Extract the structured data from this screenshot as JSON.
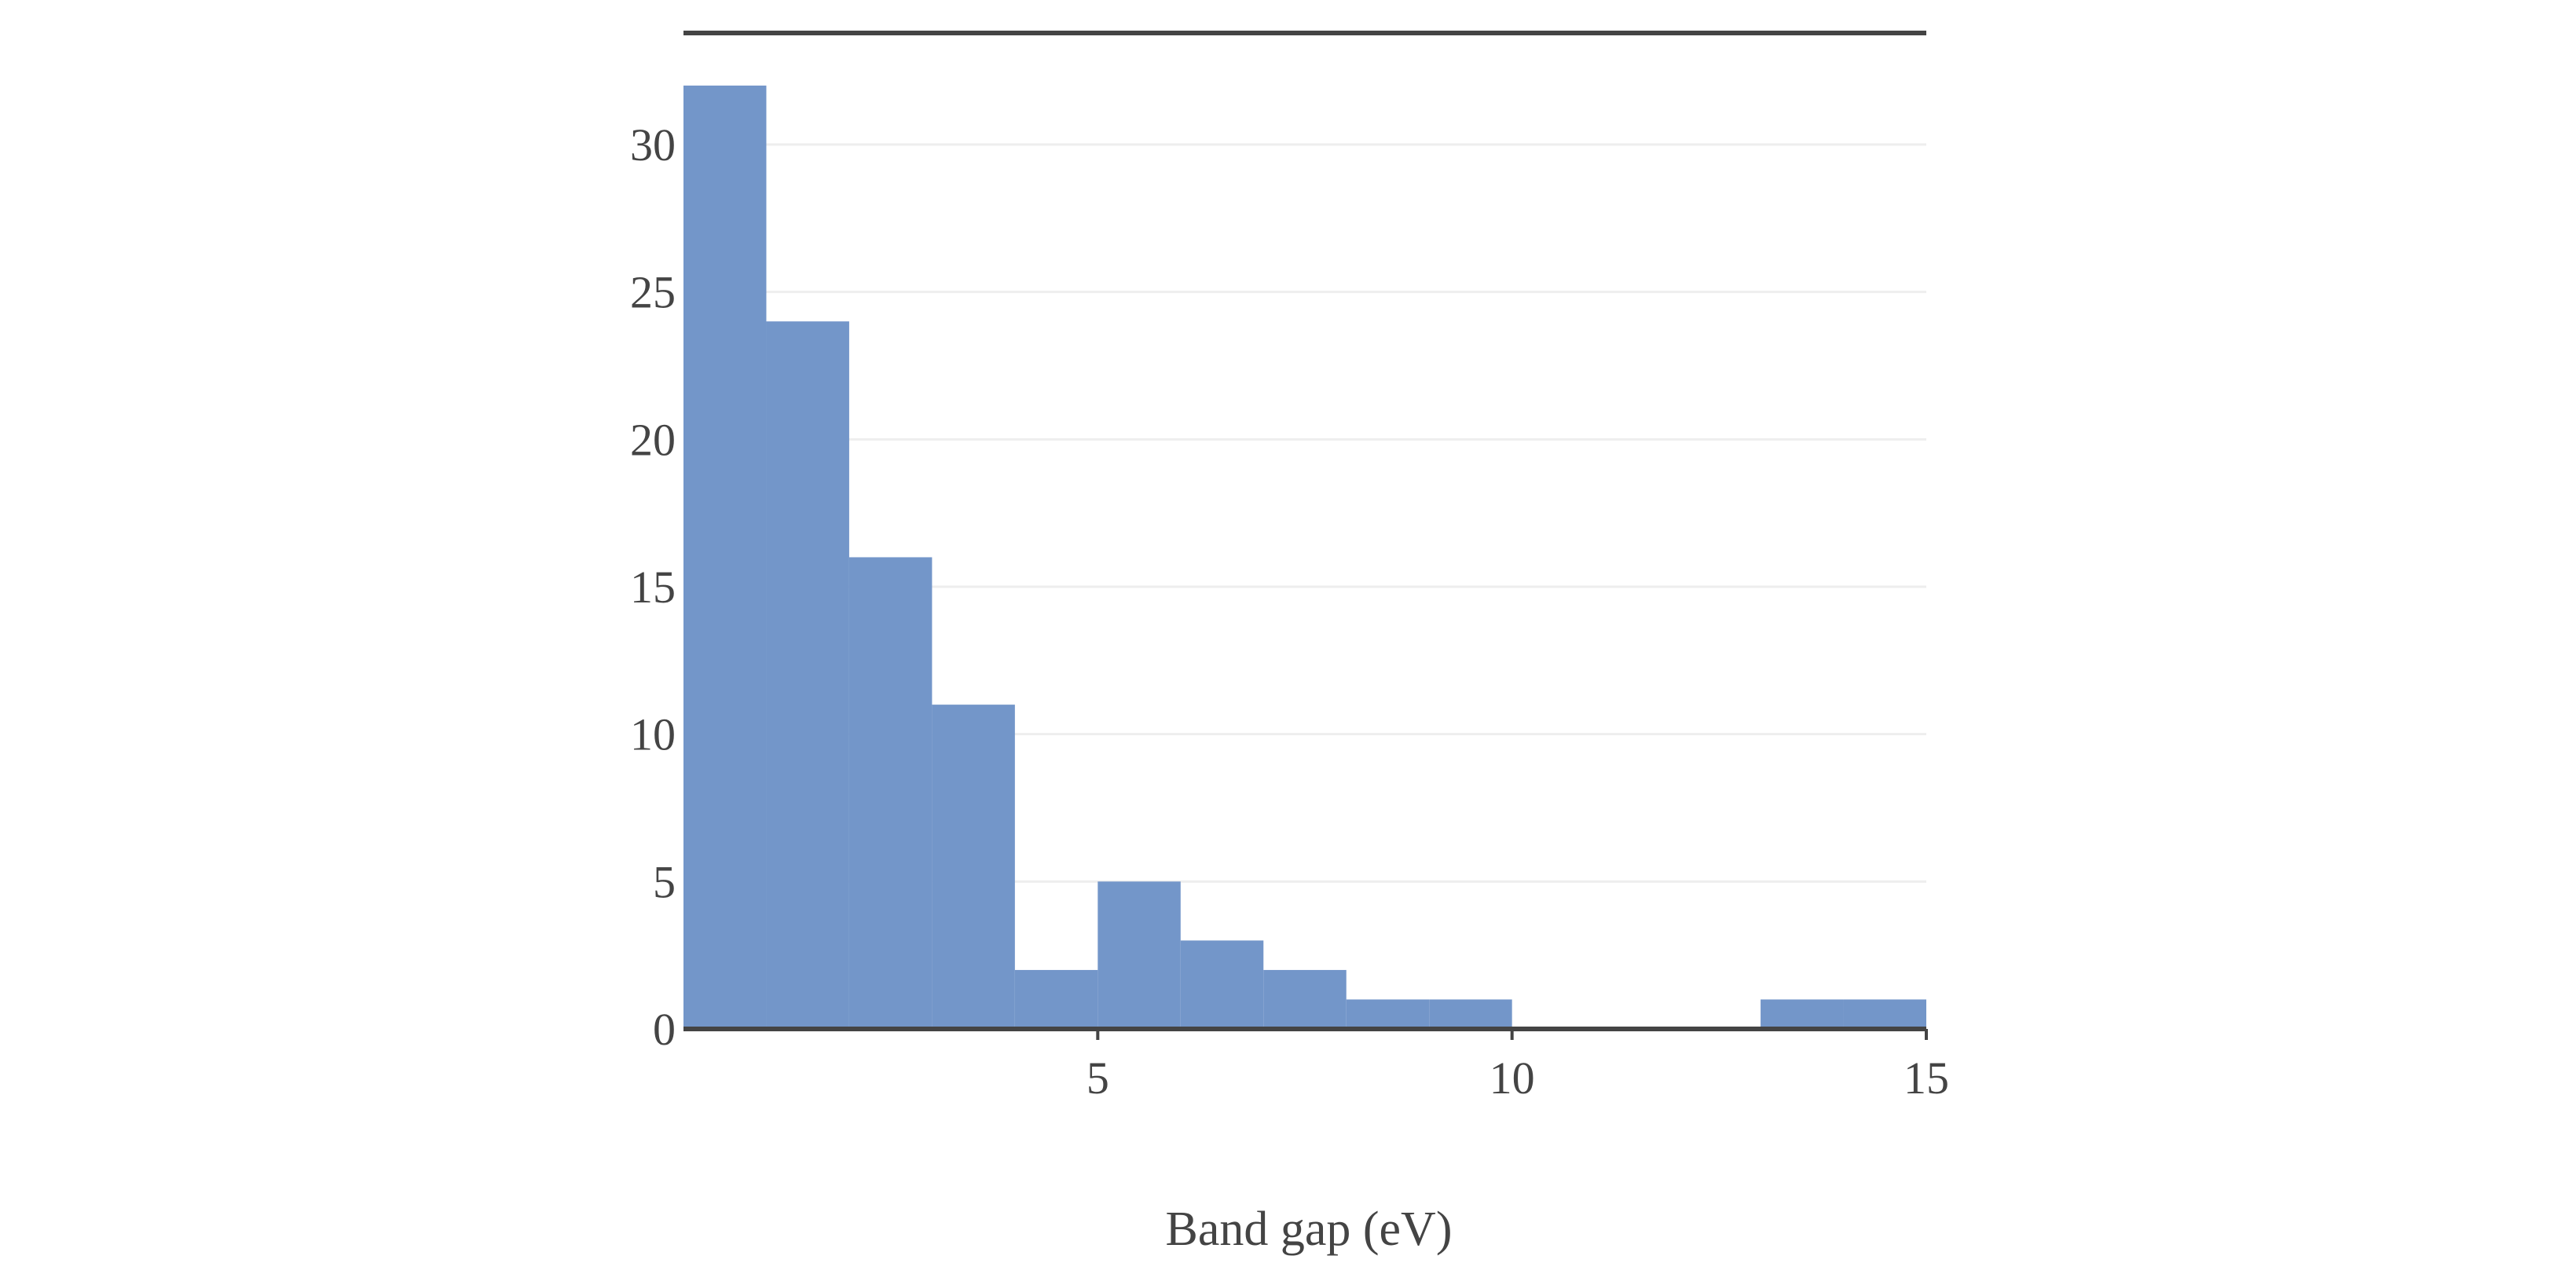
{
  "chart_data": {
    "type": "bar",
    "subtype": "histogram",
    "title": "",
    "xlabel": "Band gap (eV)",
    "ylabel": "",
    "xlim": [
      0,
      15
    ],
    "ylim": [
      0,
      32
    ],
    "x_ticks": [
      5,
      10,
      15
    ],
    "y_ticks": [
      0,
      5,
      10,
      15,
      20,
      25,
      30
    ],
    "bin_width": 1,
    "bins": [
      {
        "x0": 0,
        "x1": 1,
        "count": 32
      },
      {
        "x0": 1,
        "x1": 2,
        "count": 24
      },
      {
        "x0": 2,
        "x1": 3,
        "count": 16
      },
      {
        "x0": 3,
        "x1": 4,
        "count": 11
      },
      {
        "x0": 4,
        "x1": 5,
        "count": 2
      },
      {
        "x0": 5,
        "x1": 6,
        "count": 5
      },
      {
        "x0": 6,
        "x1": 7,
        "count": 3
      },
      {
        "x0": 7,
        "x1": 8,
        "count": 2
      },
      {
        "x0": 8,
        "x1": 9,
        "count": 1
      },
      {
        "x0": 9,
        "x1": 10,
        "count": 1
      },
      {
        "x0": 10,
        "x1": 11,
        "count": 0
      },
      {
        "x0": 11,
        "x1": 12,
        "count": 0
      },
      {
        "x0": 12,
        "x1": 13,
        "count": 0
      },
      {
        "x0": 13,
        "x1": 14,
        "count": 1
      },
      {
        "x0": 14,
        "x1": 15,
        "count": 1
      }
    ],
    "grid": {
      "y": true,
      "x": false
    },
    "legend": "none",
    "colors": {
      "bar": "#7396c9",
      "axis": "#444444",
      "grid": "#eeeeee",
      "text": "#444444"
    }
  }
}
